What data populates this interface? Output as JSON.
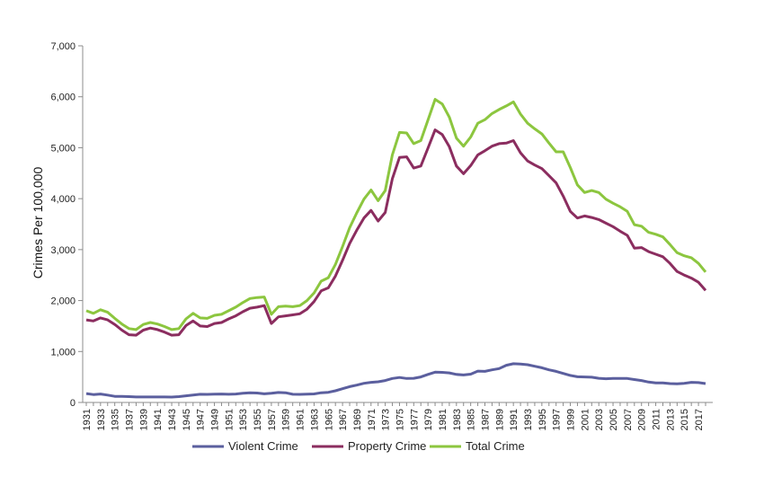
{
  "chart_data": {
    "type": "line",
    "title": "",
    "xlabel": "",
    "ylabel": "Crimes Per 100,000",
    "ylim": [
      0,
      7000
    ],
    "y_ticks": [
      "0",
      "1,000",
      "2,000",
      "3,000",
      "4,000",
      "5,000",
      "6,000",
      "7,000"
    ],
    "y_tick_values": [
      0,
      1000,
      2000,
      3000,
      4000,
      5000,
      6000,
      7000
    ],
    "x": [
      1931,
      1932,
      1933,
      1934,
      1935,
      1936,
      1937,
      1938,
      1939,
      1940,
      1941,
      1942,
      1943,
      1944,
      1945,
      1946,
      1947,
      1948,
      1949,
      1950,
      1951,
      1952,
      1953,
      1954,
      1955,
      1956,
      1957,
      1958,
      1959,
      1960,
      1961,
      1962,
      1963,
      1964,
      1965,
      1966,
      1967,
      1968,
      1969,
      1970,
      1971,
      1972,
      1973,
      1974,
      1975,
      1976,
      1977,
      1978,
      1979,
      1980,
      1981,
      1982,
      1983,
      1984,
      1985,
      1986,
      1987,
      1988,
      1989,
      1990,
      1991,
      1992,
      1993,
      1994,
      1995,
      1996,
      1997,
      1998,
      1999,
      2000,
      2001,
      2002,
      2003,
      2004,
      2005,
      2006,
      2007,
      2008,
      2009,
      2010,
      2011,
      2012,
      2013,
      2014,
      2015,
      2016,
      2017,
      2018
    ],
    "x_tick_labels": [
      "1931",
      "1933",
      "1935",
      "1937",
      "1939",
      "1941",
      "1943",
      "1945",
      "1947",
      "1949",
      "1951",
      "1953",
      "1955",
      "1957",
      "1959",
      "1961",
      "1963",
      "1965",
      "1967",
      "1969",
      "1971",
      "1973",
      "1975",
      "1977",
      "1979",
      "1981",
      "1983",
      "1985",
      "1987",
      "1989",
      "1991",
      "1993",
      "1995",
      "1997",
      "1999",
      "2001",
      "2003",
      "2005",
      "2007",
      "2009",
      "2011",
      "2013",
      "2015",
      "2017"
    ],
    "grid": false,
    "legend_position": "bottom",
    "series": [
      {
        "name": "Violent Crime",
        "color": "#5b5f9e",
        "values": [
          175,
          155,
          165,
          145,
          120,
          118,
          115,
          108,
          108,
          108,
          108,
          108,
          105,
          115,
          130,
          145,
          160,
          158,
          162,
          165,
          160,
          165,
          180,
          190,
          185,
          170,
          180,
          195,
          190,
          160,
          158,
          162,
          168,
          190,
          200,
          230,
          270,
          310,
          340,
          375,
          395,
          405,
          430,
          470,
          490,
          470,
          475,
          500,
          550,
          595,
          590,
          580,
          550,
          540,
          555,
          615,
          610,
          640,
          665,
          730,
          760,
          755,
          740,
          710,
          680,
          640,
          610,
          570,
          530,
          505,
          500,
          495,
          475,
          465,
          470,
          470,
          470,
          450,
          430,
          400,
          385,
          385,
          370,
          365,
          375,
          395,
          390,
          370
        ]
      },
      {
        "name": "Property Crime",
        "color": "#8b2d5f",
        "values": [
          1620,
          1600,
          1660,
          1620,
          1530,
          1420,
          1330,
          1320,
          1420,
          1460,
          1430,
          1380,
          1320,
          1330,
          1510,
          1600,
          1500,
          1490,
          1550,
          1570,
          1640,
          1700,
          1780,
          1850,
          1870,
          1900,
          1550,
          1680,
          1700,
          1720,
          1740,
          1830,
          1980,
          2190,
          2250,
          2480,
          2790,
          3120,
          3380,
          3620,
          3770,
          3560,
          3730,
          4390,
          4810,
          4820,
          4600,
          4640,
          4990,
          5350,
          5260,
          5020,
          4640,
          4490,
          4650,
          4860,
          4940,
          5030,
          5080,
          5090,
          5140,
          4900,
          4740,
          4660,
          4590,
          4450,
          4310,
          4050,
          3750,
          3620,
          3660,
          3630,
          3590,
          3520,
          3450,
          3360,
          3280,
          3030,
          3040,
          2960,
          2910,
          2860,
          2730,
          2570,
          2500,
          2440,
          2360,
          2200
        ]
      },
      {
        "name": "Total Crime",
        "color": "#8cc63f",
        "values": [
          1800,
          1750,
          1820,
          1770,
          1650,
          1540,
          1450,
          1430,
          1530,
          1570,
          1540,
          1490,
          1430,
          1450,
          1640,
          1750,
          1660,
          1650,
          1710,
          1730,
          1800,
          1870,
          1960,
          2040,
          2060,
          2070,
          1730,
          1880,
          1890,
          1880,
          1900,
          2000,
          2150,
          2380,
          2450,
          2710,
          3060,
          3430,
          3720,
          3990,
          4170,
          3960,
          4160,
          4860,
          5300,
          5290,
          5080,
          5140,
          5540,
          5950,
          5860,
          5600,
          5190,
          5030,
          5210,
          5480,
          5550,
          5670,
          5750,
          5820,
          5900,
          5660,
          5480,
          5370,
          5270,
          5090,
          4920,
          4920,
          4610,
          4270,
          4120,
          4160,
          4120,
          3990,
          3910,
          3840,
          3750,
          3490,
          3460,
          3340,
          3300,
          3250,
          3100,
          2940,
          2880,
          2840,
          2730,
          2560
        ]
      }
    ]
  }
}
